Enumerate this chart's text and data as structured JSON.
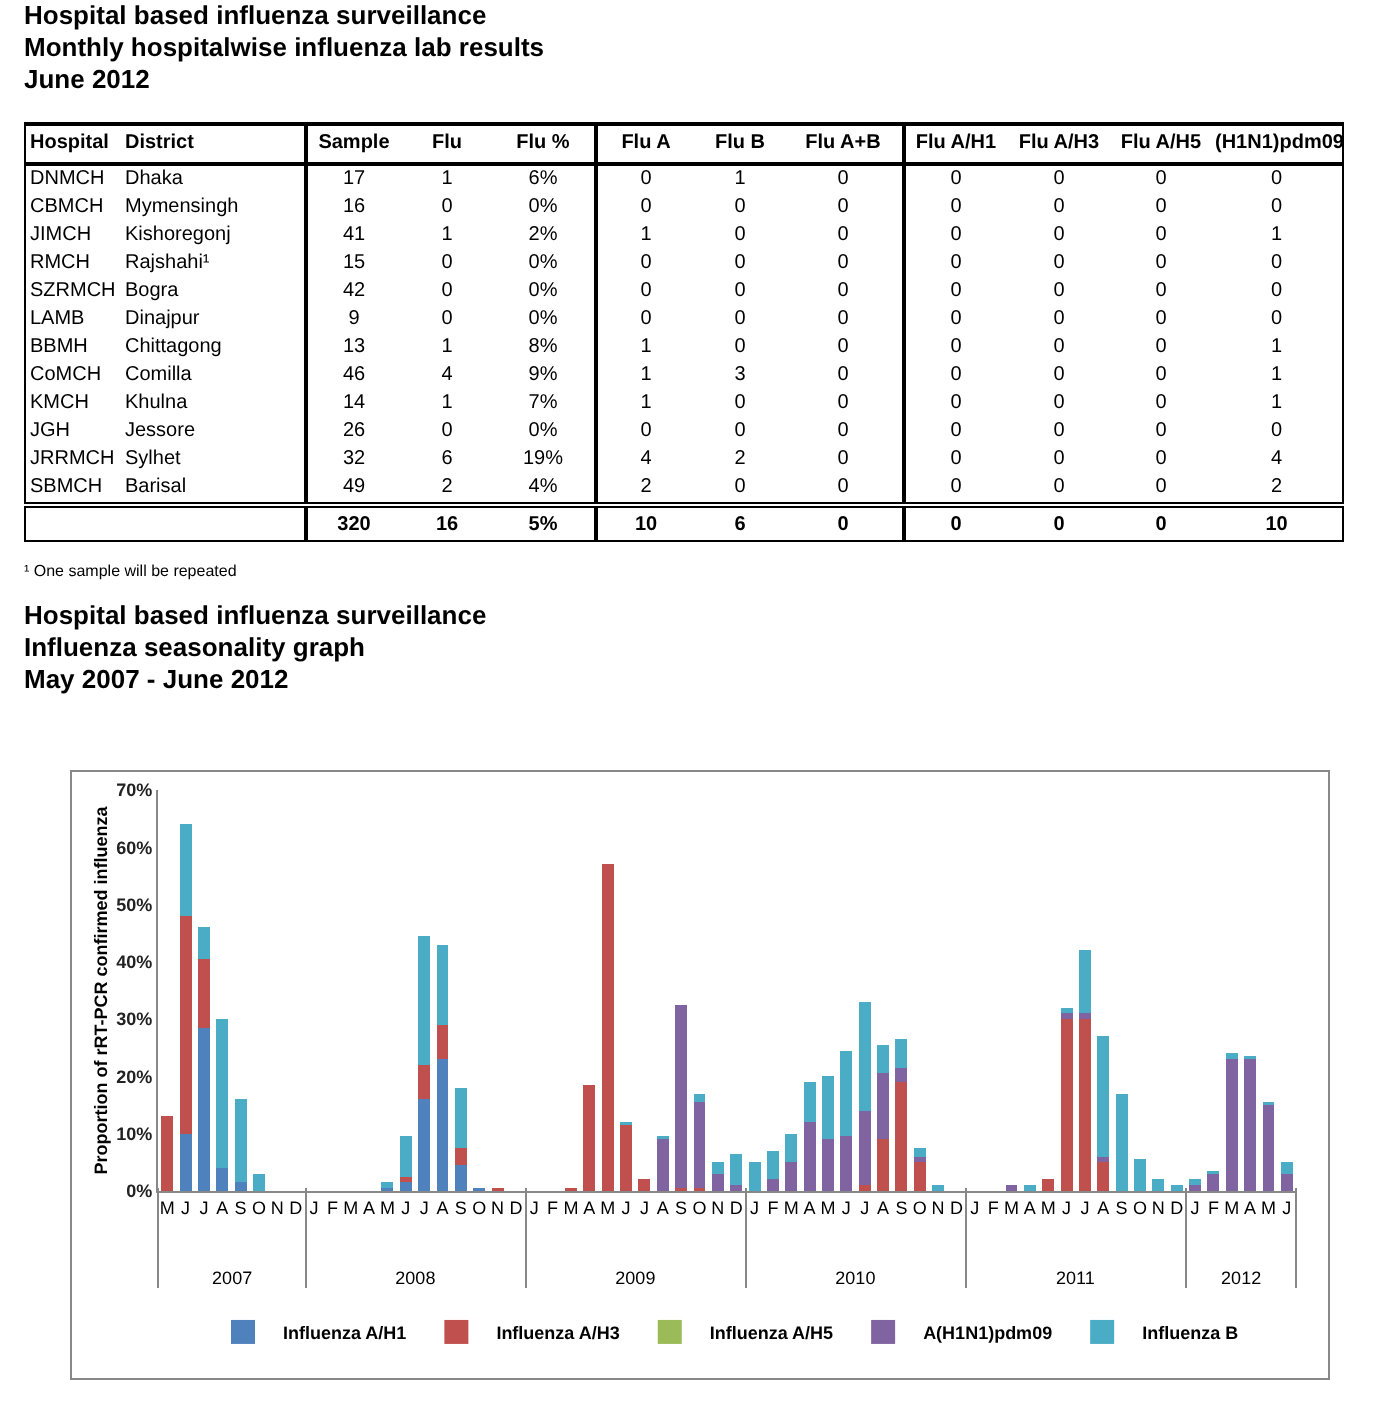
{
  "chart_data": [
    {
      "type": "other",
      "title": "Hospital based influenza surveillance",
      "subtitle": "Monthly hospitalwise influenza lab results\nJune 2012",
      "annotations": [
        "Hospital",
        "District",
        "Sample",
        "Flu",
        "Flu %",
        "Flu A",
        "Flu B",
        "Flu A+B",
        "Flu A/H1",
        "Flu A/H3",
        "Flu A/H5",
        "(H1N1)pdm09",
        "DNMCH",
        "Dhaka",
        "17",
        "1",
        "6%",
        "0",
        "1",
        "0",
        "0",
        "0",
        "0",
        "0",
        "CBMCH",
        "Mymensingh",
        "16",
        "0",
        "0%",
        "0",
        "0",
        "0",
        "0",
        "0",
        "0",
        "0",
        "JIMCH",
        "Kishoregonj",
        "41",
        "1",
        "2%",
        "1",
        "0",
        "0",
        "0",
        "0",
        "0",
        "1",
        "RMCH",
        "Rajshahi¹",
        "15",
        "0",
        "0%",
        "0",
        "0",
        "0",
        "0",
        "0",
        "0",
        "0",
        "SZRMCH",
        "Bogra",
        "42",
        "0",
        "0%",
        "0",
        "0",
        "0",
        "0",
        "0",
        "0",
        "0",
        "LAMB",
        "Dinajpur",
        "9",
        "0",
        "0%",
        "0",
        "0",
        "0",
        "0",
        "0",
        "0",
        "0",
        "BBMH",
        "Chittagong",
        "13",
        "1",
        "8%",
        "1",
        "0",
        "0",
        "0",
        "0",
        "0",
        "1",
        "CoMCH",
        "Comilla",
        "46",
        "4",
        "9%",
        "1",
        "3",
        "0",
        "0",
        "0",
        "0",
        "1",
        "KMCH",
        "Khulna",
        "14",
        "1",
        "7%",
        "1",
        "0",
        "0",
        "0",
        "0",
        "0",
        "1",
        "JGH",
        "Jessore",
        "26",
        "0",
        "0%",
        "0",
        "0",
        "0",
        "0",
        "0",
        "0",
        "0",
        "JRRMCH",
        "Sylhet",
        "32",
        "6",
        "19%",
        "4",
        "2",
        "0",
        "0",
        "0",
        "0",
        "4",
        "SBMCH",
        "Barisal",
        "49",
        "2",
        "4%",
        "2",
        "0",
        "0",
        "0",
        "0",
        "0",
        "2",
        "320",
        "16",
        "5%",
        "10",
        "6",
        "0",
        "0",
        "0",
        "0",
        "10",
        "¹ One sample will be repeated"
      ]
    },
    {
      "type": "bar",
      "stacked": true,
      "title": "Hospital based influenza surveillance",
      "subtitle": "Influenza seasonality graph\nMay 2007 - June 2012",
      "ylabel": "Proportion of rRT-PCR confirmed influenza",
      "legend": "bottom",
      "categories": [
        "M",
        "J",
        "J",
        "A",
        "S",
        "O",
        "N",
        "D",
        "J",
        "F",
        "M",
        "A",
        "M",
        "J",
        "J",
        "A",
        "S",
        "O",
        "N",
        "D",
        "J",
        "F",
        "M",
        "A",
        "M",
        "J",
        "J",
        "A",
        "S",
        "O",
        "N",
        "D",
        "J",
        "F",
        "M",
        "A",
        "M",
        "J",
        "J",
        "A",
        "S",
        "O",
        "N",
        "D",
        "J",
        "F",
        "M",
        "A",
        "M",
        "J",
        "J",
        "A",
        "S",
        "O",
        "N",
        "D",
        "J",
        "F",
        "M",
        "A",
        "M",
        "J"
      ],
      "x2lim": [
        "2007-05-01",
        "2012-07-01"
      ],
      "x2ticks": [
        {
          "value": "2007-09-01",
          "label": "2007"
        },
        {
          "value": "2008-07-01",
          "label": "2008"
        },
        {
          "value": "2009-07-01",
          "label": "2009"
        },
        {
          "value": "2010-07-01",
          "label": "2010"
        },
        {
          "value": "2011-07-01",
          "label": "2011"
        },
        {
          "value": "2012-04-01",
          "label": "2012"
        }
      ],
      "ylim": [
        0,
        70
      ],
      "yticks": [
        {
          "value": 0,
          "label": "0%"
        },
        {
          "value": 10,
          "label": "10%"
        },
        {
          "value": 20,
          "label": "20%"
        },
        {
          "value": 30,
          "label": "30%"
        },
        {
          "value": 40,
          "label": "40%"
        },
        {
          "value": 50,
          "label": "50%"
        },
        {
          "value": 60,
          "label": "60%"
        },
        {
          "value": 70,
          "label": "70%"
        }
      ],
      "series": [
        {
          "name": "Influenza A/H1",
          "color": "#4f81bd",
          "values": [
            0,
            10,
            28.5,
            4,
            1.5,
            0,
            0,
            0,
            0,
            0,
            0,
            0,
            0.5,
            1.5,
            16,
            23,
            4.5,
            0.5,
            0,
            0,
            0,
            0,
            0,
            0,
            0,
            0,
            0,
            0,
            0,
            0,
            0,
            0,
            0,
            0,
            0,
            0,
            0,
            0,
            0,
            0,
            0,
            0,
            0,
            0,
            0,
            0,
            0,
            0,
            0,
            0,
            0,
            0,
            0,
            0,
            0,
            0,
            0,
            0,
            0,
            0,
            0,
            0
          ]
        },
        {
          "name": "Influenza A/H3",
          "color": "#c0504d",
          "values": [
            13,
            38,
            12,
            0,
            0,
            0,
            0,
            0,
            0,
            0,
            0,
            0,
            0,
            1,
            6,
            6,
            3,
            0,
            0.5,
            0,
            0,
            0,
            0.5,
            18.5,
            57,
            11.5,
            2,
            0,
            0.5,
            0.5,
            0,
            0,
            0,
            0,
            0,
            0,
            0,
            0,
            1,
            9,
            19,
            5,
            0,
            0,
            0,
            0,
            0,
            0,
            2,
            30,
            30,
            5,
            0,
            0,
            0,
            0,
            0,
            0,
            0,
            0,
            0,
            0
          ]
        },
        {
          "name": "Influenza A/H5",
          "color": "#9bbb59",
          "values": [
            0,
            0,
            0,
            0,
            0,
            0,
            0,
            0,
            0,
            0,
            0,
            0,
            0,
            0,
            0,
            0,
            0,
            0,
            0,
            0,
            0,
            0,
            0,
            0,
            0,
            0,
            0,
            0,
            0,
            0,
            0,
            0,
            0,
            0,
            0,
            0,
            0,
            0,
            0,
            0,
            0,
            0,
            0,
            0,
            0,
            0,
            0,
            0,
            0,
            0,
            0,
            0,
            0,
            0,
            0,
            0,
            0,
            0,
            0,
            0,
            0,
            0
          ]
        },
        {
          "name": "A(H1N1)pdm09",
          "color": "#8064a2",
          "values": [
            0,
            0,
            0,
            0,
            0,
            0,
            0,
            0,
            0,
            0,
            0,
            0,
            0,
            0,
            0,
            0,
            0,
            0,
            0,
            0,
            0,
            0,
            0,
            0,
            0,
            0,
            0,
            9,
            32,
            15,
            3,
            1,
            0,
            2,
            5,
            12,
            9,
            9.5,
            13,
            11.5,
            2.5,
            1,
            0,
            0,
            0,
            0,
            1,
            0,
            0,
            1,
            1,
            1,
            0,
            0,
            0,
            0,
            1,
            3,
            23,
            23,
            15,
            3
          ]
        },
        {
          "name": "Influenza B",
          "color": "#4bacc6",
          "values": [
            0,
            16,
            5.5,
            26,
            14.5,
            3,
            0,
            0,
            0,
            0,
            0,
            0,
            1,
            7,
            22.5,
            14,
            10.5,
            0,
            0,
            0,
            0,
            0,
            0,
            0,
            0,
            0.5,
            0,
            0.5,
            0,
            1.5,
            2,
            5.5,
            5,
            5,
            5,
            7,
            11,
            15,
            19,
            5,
            5,
            1.5,
            1,
            0,
            0,
            0,
            0,
            1,
            0,
            1,
            11,
            21,
            17,
            5.5,
            2,
            1,
            1,
            0.5,
            1,
            0.5,
            0.5,
            2
          ]
        }
      ]
    }
  ]
}
